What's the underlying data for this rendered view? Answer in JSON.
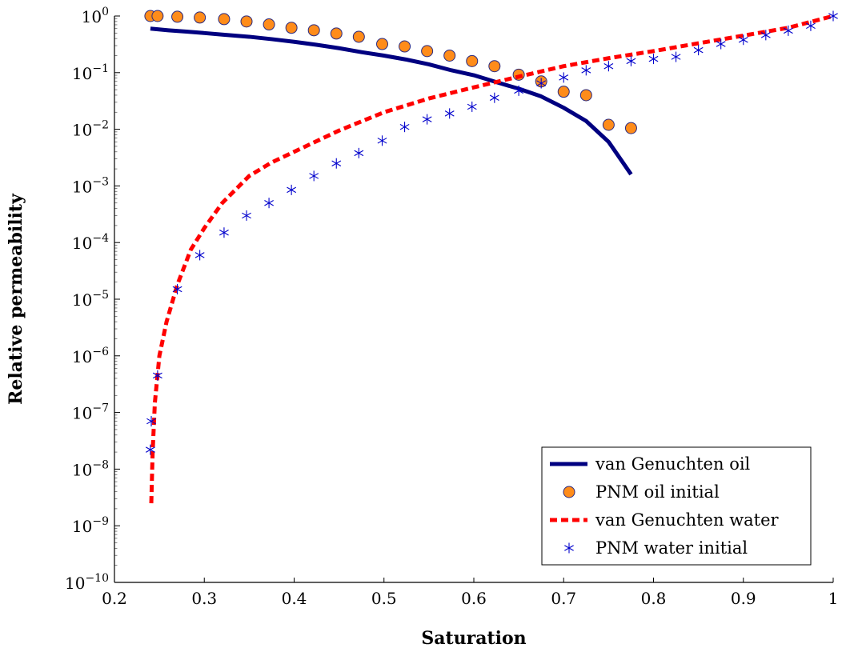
{
  "chart_data": {
    "type": "line",
    "xlabel": "Saturation",
    "ylabel": "Relative permeability",
    "xlim": [
      0.2,
      1.0
    ],
    "ylim": [
      1e-10,
      1
    ],
    "y_scale": "log",
    "x_ticks": [
      "0.2",
      "0.3",
      "0.4",
      "0.5",
      "0.6",
      "0.7",
      "0.8",
      "0.9",
      "1"
    ],
    "y_tick_exponents": [
      "0",
      "−1",
      "−2",
      "−3",
      "−4",
      "−5",
      "−6",
      "−7",
      "−8",
      "−9",
      "−10"
    ],
    "legend_position": "bottom-right",
    "colors": {
      "vg_oil": "#000080",
      "pnm_oil_fill": "#ff8c1a",
      "pnm_oil_edge": "#2a2a80",
      "vg_water": "#ff0000",
      "pnm_water": "#0000cc"
    },
    "series": [
      {
        "name": "van Genuchten oil",
        "style": "solid-line",
        "x": [
          0.24,
          0.26,
          0.28,
          0.3,
          0.32,
          0.35,
          0.375,
          0.4,
          0.425,
          0.45,
          0.475,
          0.5,
          0.525,
          0.55,
          0.575,
          0.6,
          0.625,
          0.65,
          0.675,
          0.7,
          0.725,
          0.75,
          0.775
        ],
        "y": [
          0.6,
          0.56,
          0.53,
          0.5,
          0.47,
          0.43,
          0.39,
          0.35,
          0.31,
          0.27,
          0.23,
          0.2,
          0.17,
          0.14,
          0.11,
          0.09,
          0.068,
          0.052,
          0.038,
          0.024,
          0.014,
          0.006,
          0.0016
        ]
      },
      {
        "name": "PNM oil initial",
        "style": "circle-markers",
        "x": [
          0.24,
          0.248,
          0.27,
          0.295,
          0.322,
          0.347,
          0.372,
          0.397,
          0.422,
          0.447,
          0.472,
          0.498,
          0.523,
          0.548,
          0.573,
          0.598,
          0.623,
          0.65,
          0.675,
          0.7,
          0.725,
          0.75,
          0.775
        ],
        "y": [
          1.0,
          1.0,
          0.97,
          0.94,
          0.88,
          0.8,
          0.71,
          0.62,
          0.56,
          0.49,
          0.43,
          0.32,
          0.29,
          0.24,
          0.2,
          0.16,
          0.13,
          0.092,
          0.07,
          0.046,
          0.04,
          0.012,
          0.0105
        ]
      },
      {
        "name": "van Genuchten water",
        "style": "dashed-line",
        "x": [
          0.241,
          0.2425,
          0.245,
          0.25,
          0.258,
          0.27,
          0.285,
          0.3,
          0.32,
          0.35,
          0.375,
          0.4,
          0.45,
          0.5,
          0.55,
          0.6,
          0.65,
          0.7,
          0.75,
          0.8,
          0.85,
          0.9,
          0.95,
          1.0
        ],
        "y": [
          2.5e-09,
          2e-08,
          1.5e-07,
          1e-06,
          4e-06,
          1.8e-05,
          7.5e-05,
          0.00018,
          0.0005,
          0.0015,
          0.0026,
          0.004,
          0.0095,
          0.02,
          0.035,
          0.055,
          0.085,
          0.13,
          0.18,
          0.24,
          0.33,
          0.45,
          0.62,
          1.0
        ]
      },
      {
        "name": "PNM water initial",
        "style": "asterisk-markers",
        "x": [
          0.24,
          0.241,
          0.248,
          0.27,
          0.295,
          0.322,
          0.347,
          0.372,
          0.397,
          0.422,
          0.447,
          0.472,
          0.498,
          0.523,
          0.548,
          0.573,
          0.598,
          0.623,
          0.65,
          0.675,
          0.7,
          0.725,
          0.75,
          0.775,
          0.8,
          0.825,
          0.85,
          0.875,
          0.9,
          0.925,
          0.95,
          0.975,
          1.0
        ],
        "y": [
          2.2e-08,
          7e-08,
          4.5e-07,
          1.5e-05,
          6e-05,
          0.00015,
          0.0003,
          0.0005,
          0.00085,
          0.0015,
          0.0025,
          0.0038,
          0.0063,
          0.011,
          0.015,
          0.019,
          0.025,
          0.036,
          0.048,
          0.065,
          0.082,
          0.11,
          0.13,
          0.16,
          0.175,
          0.19,
          0.25,
          0.32,
          0.38,
          0.46,
          0.55,
          0.67,
          1.0
        ]
      }
    ]
  }
}
